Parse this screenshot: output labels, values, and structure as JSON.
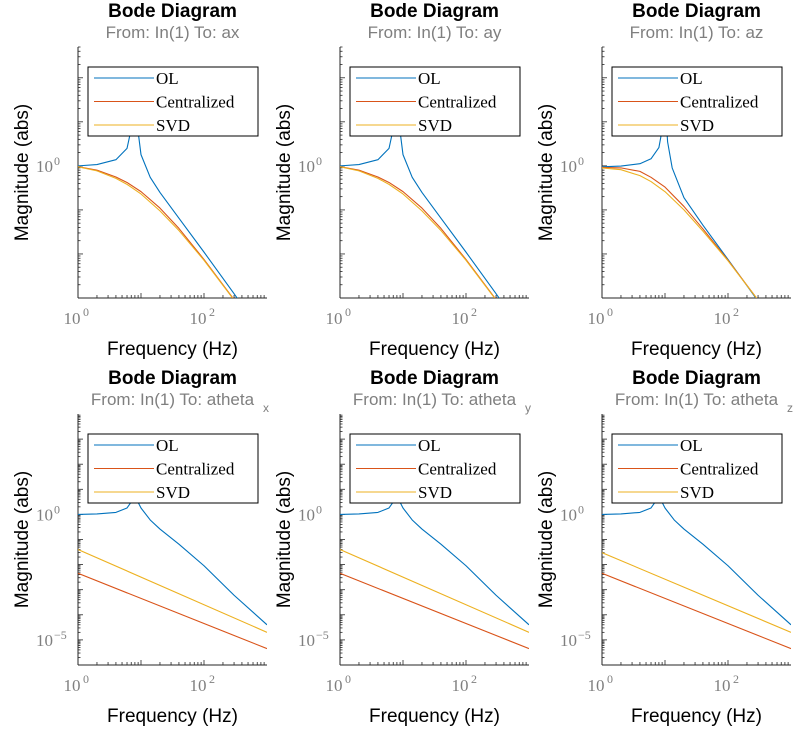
{
  "colors": {
    "OL": "#0072bd",
    "Centralized": "#d95319",
    "SVD": "#edb120",
    "axis": "#262626",
    "tick_text": "#7f7f7f"
  },
  "chart_data": [
    {
      "type": "line",
      "x_scale": "log",
      "y_scale": "log",
      "title": "Bode Diagram",
      "subtitle": "From: In(1)  To: ax",
      "subtitle_index": "",
      "xlabel": "Frequency  (Hz)",
      "ylabel": "Magnitude (abs)",
      "xlim": [
        1,
        1000
      ],
      "ylim": [
        0.001,
        500
      ],
      "x_ticks": [
        {
          "base": "10",
          "exp": "0",
          "value": 1
        },
        {
          "base": "10",
          "exp": "2",
          "value": 100
        }
      ],
      "y_ticks": [
        {
          "base": "10",
          "exp": "0",
          "value": 1
        }
      ],
      "legend": "top",
      "legend_entries": [
        "OL",
        "Centralized",
        "SVD"
      ],
      "series": [
        {
          "name": "OL",
          "x": [
            1,
            2,
            4,
            6,
            7.4,
            7.8,
            8,
            8.2,
            8.6,
            10,
            14,
            20,
            40,
            100,
            300,
            1000
          ],
          "y": [
            1,
            1.07,
            1.38,
            2.5,
            10,
            45,
            90,
            45,
            10,
            1.8,
            0.55,
            0.25,
            0.065,
            0.011,
            0.00125,
            0.00011
          ]
        },
        {
          "name": "Centralized",
          "x": [
            1,
            2,
            4,
            6,
            10,
            20,
            40,
            100,
            300,
            1000
          ],
          "y": [
            0.96,
            0.8,
            0.56,
            0.42,
            0.26,
            0.11,
            0.038,
            0.0075,
            0.00092,
            9e-05
          ]
        },
        {
          "name": "SVD",
          "x": [
            1,
            2,
            4,
            6,
            10,
            20,
            40,
            100,
            300,
            1000
          ],
          "y": [
            0.95,
            0.77,
            0.52,
            0.38,
            0.23,
            0.095,
            0.034,
            0.0072,
            0.0009,
            9e-05
          ]
        }
      ]
    },
    {
      "type": "line",
      "x_scale": "log",
      "y_scale": "log",
      "title": "Bode Diagram",
      "subtitle": "From: In(1)  To: ay",
      "subtitle_index": "",
      "xlabel": "Frequency  (Hz)",
      "ylabel": "Magnitude (abs)",
      "xlim": [
        1,
        1000
      ],
      "ylim": [
        0.001,
        500
      ],
      "x_ticks": [
        {
          "base": "10",
          "exp": "0",
          "value": 1
        },
        {
          "base": "10",
          "exp": "2",
          "value": 100
        }
      ],
      "y_ticks": [
        {
          "base": "10",
          "exp": "0",
          "value": 1
        }
      ],
      "legend": "top",
      "legend_entries": [
        "OL",
        "Centralized",
        "SVD"
      ],
      "series": [
        {
          "name": "OL",
          "x": [
            1,
            2,
            4,
            6,
            7.4,
            7.8,
            8,
            8.2,
            8.6,
            10,
            14,
            20,
            40,
            100,
            300,
            1000
          ],
          "y": [
            1,
            1.07,
            1.38,
            2.5,
            10,
            45,
            90,
            45,
            10,
            1.8,
            0.55,
            0.25,
            0.065,
            0.011,
            0.00125,
            0.00011
          ]
        },
        {
          "name": "Centralized",
          "x": [
            1,
            2,
            4,
            6,
            10,
            20,
            40,
            100,
            300,
            1000
          ],
          "y": [
            0.96,
            0.8,
            0.56,
            0.42,
            0.26,
            0.11,
            0.038,
            0.0075,
            0.00092,
            9e-05
          ]
        },
        {
          "name": "SVD",
          "x": [
            1,
            2,
            4,
            6,
            10,
            20,
            40,
            100,
            300,
            1000
          ],
          "y": [
            0.95,
            0.77,
            0.52,
            0.38,
            0.23,
            0.095,
            0.034,
            0.0072,
            0.0009,
            9e-05
          ]
        }
      ]
    },
    {
      "type": "line",
      "x_scale": "log",
      "y_scale": "log",
      "title": "Bode Diagram",
      "subtitle": "From: In(1)  To: az",
      "subtitle_index": "",
      "xlabel": "Frequency  (Hz)",
      "ylabel": "Magnitude (abs)",
      "xlim": [
        1,
        1000
      ],
      "ylim": [
        0.001,
        500
      ],
      "x_ticks": [
        {
          "base": "10",
          "exp": "0",
          "value": 1
        },
        {
          "base": "10",
          "exp": "2",
          "value": 100
        }
      ],
      "y_ticks": [
        {
          "base": "10",
          "exp": "0",
          "value": 1
        }
      ],
      "legend": "top",
      "legend_entries": [
        "OL",
        "Centralized",
        "SVD"
      ],
      "series": [
        {
          "name": "OL",
          "x": [
            1,
            2,
            4,
            6,
            8,
            9.5,
            10,
            10.5,
            11,
            13,
            20,
            40,
            100,
            300,
            1000
          ],
          "y": [
            0.95,
            0.99,
            1.12,
            1.45,
            2.6,
            10,
            60,
            10,
            3.5,
            0.9,
            0.19,
            0.045,
            0.0075,
            0.00085,
            8e-05
          ]
        },
        {
          "name": "Centralized",
          "x": [
            1,
            2,
            4,
            6,
            10,
            20,
            40,
            100,
            300,
            1000
          ],
          "y": [
            0.92,
            0.9,
            0.75,
            0.55,
            0.33,
            0.12,
            0.037,
            0.0072,
            0.0009,
            9e-05
          ]
        },
        {
          "name": "SVD",
          "x": [
            1,
            2,
            4,
            6,
            10,
            20,
            40,
            100,
            300,
            1000
          ],
          "y": [
            0.9,
            0.82,
            0.6,
            0.44,
            0.26,
            0.1,
            0.033,
            0.007,
            0.0009,
            9e-05
          ]
        }
      ]
    },
    {
      "type": "line",
      "x_scale": "log",
      "y_scale": "log",
      "title": "Bode Diagram",
      "subtitle": "From: In(1)  To: atheta",
      "subtitle_index": "x",
      "xlabel": "Frequency  (Hz)",
      "ylabel": "Magnitude (abs)",
      "xlim": [
        1,
        1000
      ],
      "ylim": [
        1e-06,
        10000
      ],
      "x_ticks": [
        {
          "base": "10",
          "exp": "0",
          "value": 1
        },
        {
          "base": "10",
          "exp": "2",
          "value": 100
        }
      ],
      "y_ticks": [
        {
          "base": "10",
          "exp": "0",
          "value": 1
        },
        {
          "base": "10",
          "exp": "−5",
          "value": 1e-05
        }
      ],
      "legend": "top",
      "legend_entries": [
        "OL",
        "Centralized",
        "SVD"
      ],
      "series": [
        {
          "name": "OL",
          "x": [
            1,
            2,
            4,
            6,
            7.5,
            8,
            8.5,
            10,
            14,
            20,
            40,
            100,
            300,
            1000
          ],
          "y": [
            1,
            1.04,
            1.2,
            1.8,
            4,
            12,
            4,
            1.8,
            0.6,
            0.26,
            0.065,
            0.009,
            0.0006,
            4e-05
          ]
        },
        {
          "name": "Centralized",
          "x": [
            1,
            1000
          ],
          "y": [
            0.0045,
            4.5e-06
          ]
        },
        {
          "name": "SVD",
          "x": [
            1,
            1000
          ],
          "y": [
            0.04,
            2e-05
          ]
        }
      ]
    },
    {
      "type": "line",
      "x_scale": "log",
      "y_scale": "log",
      "title": "Bode Diagram",
      "subtitle": "From: In(1)  To: atheta",
      "subtitle_index": "y",
      "xlabel": "Frequency  (Hz)",
      "ylabel": "Magnitude (abs)",
      "xlim": [
        1,
        1000
      ],
      "ylim": [
        1e-06,
        10000
      ],
      "x_ticks": [
        {
          "base": "10",
          "exp": "0",
          "value": 1
        },
        {
          "base": "10",
          "exp": "2",
          "value": 100
        }
      ],
      "y_ticks": [
        {
          "base": "10",
          "exp": "0",
          "value": 1
        },
        {
          "base": "10",
          "exp": "−5",
          "value": 1e-05
        }
      ],
      "legend": "top",
      "legend_entries": [
        "OL",
        "Centralized",
        "SVD"
      ],
      "series": [
        {
          "name": "OL",
          "x": [
            1,
            2,
            4,
            6,
            7.5,
            8,
            8.5,
            10,
            14,
            20,
            40,
            100,
            300,
            1000
          ],
          "y": [
            1,
            1.04,
            1.2,
            1.8,
            4,
            12,
            4,
            1.8,
            0.6,
            0.26,
            0.065,
            0.009,
            0.0006,
            4e-05
          ]
        },
        {
          "name": "Centralized",
          "x": [
            1,
            1000
          ],
          "y": [
            0.0045,
            4.5e-06
          ]
        },
        {
          "name": "SVD",
          "x": [
            1,
            1000
          ],
          "y": [
            0.04,
            2e-05
          ]
        }
      ]
    },
    {
      "type": "line",
      "x_scale": "log",
      "y_scale": "log",
      "title": "Bode Diagram",
      "subtitle": "From: In(1)  To: atheta",
      "subtitle_index": "z",
      "xlabel": "Frequency  (Hz)",
      "ylabel": "Magnitude (abs)",
      "xlim": [
        1,
        1000
      ],
      "ylim": [
        1e-06,
        10000
      ],
      "x_ticks": [
        {
          "base": "10",
          "exp": "0",
          "value": 1
        },
        {
          "base": "10",
          "exp": "2",
          "value": 100
        }
      ],
      "y_ticks": [
        {
          "base": "10",
          "exp": "0",
          "value": 1
        },
        {
          "base": "10",
          "exp": "−5",
          "value": 1e-05
        }
      ],
      "legend": "top",
      "legend_entries": [
        "OL",
        "Centralized",
        "SVD"
      ],
      "series": [
        {
          "name": "OL",
          "x": [
            1,
            2,
            4,
            6,
            7.5,
            8,
            8.5,
            10,
            14,
            20,
            40,
            100,
            300,
            1000
          ],
          "y": [
            1,
            1.04,
            1.2,
            1.8,
            4,
            12,
            4,
            1.8,
            0.6,
            0.26,
            0.065,
            0.009,
            0.0006,
            4e-05
          ]
        },
        {
          "name": "Centralized",
          "x": [
            1,
            1000
          ],
          "y": [
            0.0045,
            4.5e-06
          ]
        },
        {
          "name": "SVD",
          "x": [
            1,
            1000
          ],
          "y": [
            0.03,
            2e-05
          ]
        }
      ]
    }
  ]
}
